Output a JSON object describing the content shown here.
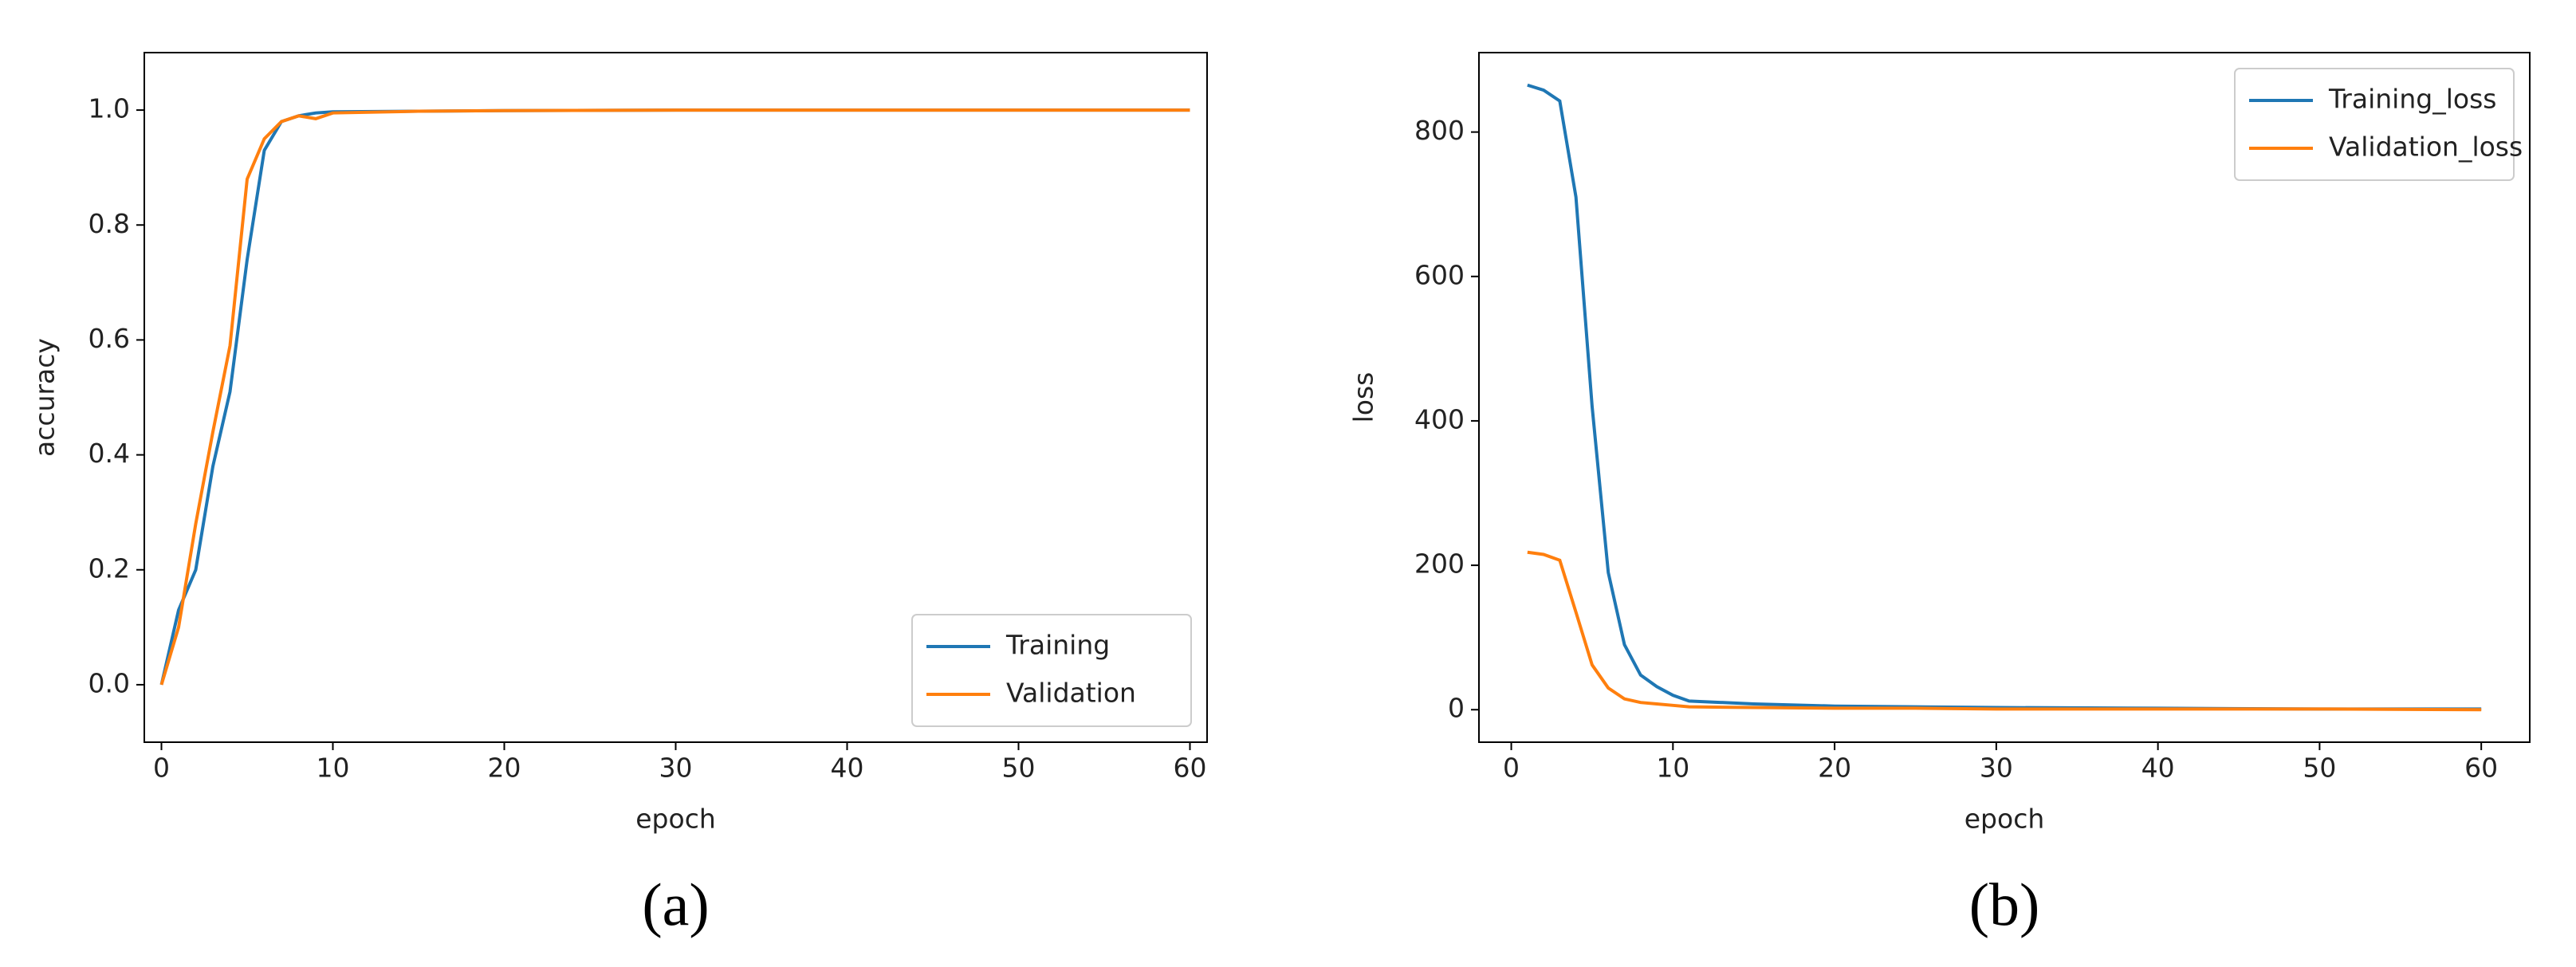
{
  "chart_data": [
    {
      "type": "line",
      "caption": "(a)",
      "x_label": "epoch",
      "y_label": "accuracy",
      "x": [
        0,
        1,
        2,
        3,
        4,
        5,
        6,
        7,
        8,
        9,
        10,
        15,
        20,
        30,
        40,
        50,
        60
      ],
      "series": [
        {
          "name": "Training",
          "color": "#1f77b4",
          "values": [
            0,
            0.13,
            0.2,
            0.38,
            0.51,
            0.74,
            0.93,
            0.98,
            0.99,
            0.995,
            0.997,
            0.998,
            0.999,
            1,
            1,
            1,
            1
          ]
        },
        {
          "name": "Validation",
          "color": "#ff7f0e",
          "values": [
            0,
            0.1,
            0.28,
            0.44,
            0.59,
            0.88,
            0.95,
            0.98,
            0.99,
            0.985,
            0.995,
            0.998,
            0.999,
            1,
            1,
            1,
            1
          ]
        }
      ],
      "xlim": [
        -1,
        61
      ],
      "xticks": [
        0,
        10,
        20,
        30,
        40,
        50,
        60
      ],
      "ylim": [
        -0.1,
        1.1
      ],
      "yticks": [
        {
          "value": 0,
          "label": "0.0"
        },
        0.2,
        0.4,
        0.6,
        0.8,
        {
          "value": 1,
          "label": "1.0"
        }
      ],
      "legend": "lower right"
    },
    {
      "type": "line",
      "caption": "(b)",
      "x_label": "epoch",
      "y_label": "loss",
      "x": [
        1,
        2,
        3,
        4,
        5,
        6,
        7,
        8,
        9,
        10,
        11,
        15,
        20,
        25,
        30,
        40,
        50,
        60
      ],
      "series": [
        {
          "name": "Training_loss",
          "color": "#1f77b4",
          "values": [
            865,
            858,
            843,
            710,
            420,
            190,
            90,
            48,
            32,
            20,
            12,
            8,
            5,
            4,
            3,
            2,
            1,
            1
          ]
        },
        {
          "name": "Validation_loss",
          "color": "#ff7f0e",
          "values": [
            218,
            215,
            207,
            135,
            62,
            30,
            15,
            10,
            8,
            6,
            4,
            3,
            2,
            2,
            1,
            1,
            1,
            0
          ]
        }
      ],
      "xlim": [
        -2,
        63
      ],
      "xticks": [
        0,
        10,
        20,
        30,
        40,
        50,
        60
      ],
      "ylim": [
        -45,
        910
      ],
      "yticks": [
        0,
        200,
        400,
        600,
        800
      ],
      "legend": "upper right"
    }
  ]
}
